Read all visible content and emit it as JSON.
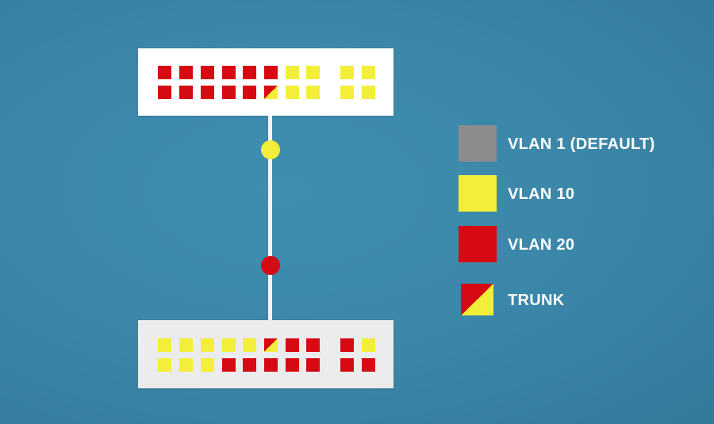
{
  "colors": {
    "default": "#8c8c8c",
    "vlan10": "#f2ee3a",
    "vlan20": "#d60a12",
    "link": "#f4f4f4"
  },
  "legend": {
    "default_label": "VLAN 1 (DEFAULT)",
    "vlan10_label": "VLAN 10",
    "vlan20_label": "VLAN 20",
    "trunk_label": "TRUNK"
  },
  "switches": {
    "top": {
      "row1": [
        "vlan20",
        "vlan20",
        "vlan20",
        "vlan20",
        "vlan20",
        "vlan20",
        "vlan10",
        "vlan10",
        "vlan10",
        "vlan10"
      ],
      "row2": [
        "vlan20",
        "vlan20",
        "vlan20",
        "vlan20",
        "vlan20",
        "trunk",
        "vlan10",
        "vlan10",
        "vlan10",
        "vlan10"
      ]
    },
    "bottom": {
      "row1": [
        "vlan10",
        "vlan10",
        "vlan10",
        "vlan10",
        "vlan10",
        "trunk",
        "vlan20",
        "vlan20",
        "vlan20",
        "vlan10"
      ],
      "row2": [
        "vlan10",
        "vlan10",
        "vlan10",
        "vlan20",
        "vlan20",
        "vlan20",
        "vlan20",
        "vlan20",
        "vlan20",
        "vlan20"
      ]
    }
  },
  "trunk_vlans": [
    "vlan10",
    "vlan20"
  ]
}
